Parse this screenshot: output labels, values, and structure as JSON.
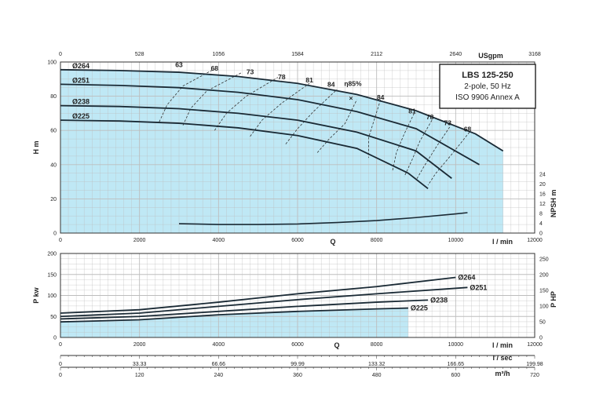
{
  "chart_data": [
    {
      "type": "line",
      "name_text": "H–Q performance",
      "title": "",
      "info_box": {
        "model": "LBS 125-250",
        "line2": "2-pole, 50 Hz",
        "line3": "ISO 9906 Annex A"
      },
      "colors": {
        "fill": "#bfe8f5",
        "curve": "#1a2a35",
        "grid": "#bdbdbd"
      },
      "x_axis": {
        "label": "Q",
        "unit": "l / min",
        "range": [
          0,
          12000
        ],
        "ticks": [
          "0",
          "2000",
          "4000",
          "6000",
          "8000",
          "10000",
          "12000"
        ]
      },
      "x_top_axis": {
        "unit": "USgpm",
        "range": [
          0,
          3168
        ],
        "ticks": [
          "0",
          "528",
          "1056",
          "1584",
          "2112",
          "2640",
          "3168"
        ]
      },
      "y_axis": {
        "label": "H m",
        "range": [
          0,
          100
        ],
        "ticks": [
          "0",
          "20",
          "40",
          "60",
          "80",
          "100"
        ]
      },
      "y_right_axis": {
        "label": "NPSH m",
        "range": [
          0,
          24
        ],
        "ticks": [
          "0",
          "4",
          "8",
          "12",
          "16",
          "20",
          "24"
        ]
      },
      "series": [
        {
          "name": "Ø264",
          "x": [
            0,
            1500,
            3000,
            4500,
            6000,
            7500,
            9000,
            10500,
            11200
          ],
          "y": [
            95.5,
            95,
            94,
            91.5,
            87.5,
            81,
            71.5,
            58,
            48
          ]
        },
        {
          "name": "Ø251",
          "x": [
            0,
            1500,
            3000,
            4500,
            6000,
            7500,
            9000,
            10600
          ],
          "y": [
            87,
            86.3,
            85,
            82.3,
            78,
            71,
            61,
            40
          ]
        },
        {
          "name": "Ø238",
          "x": [
            0,
            1500,
            3000,
            4500,
            6000,
            7500,
            9000,
            9900
          ],
          "y": [
            74.5,
            74,
            72.7,
            70,
            66,
            59,
            48,
            32
          ]
        },
        {
          "name": "Ø225",
          "x": [
            0,
            1500,
            3000,
            4500,
            6000,
            7500,
            8800,
            9300
          ],
          "y": [
            66,
            65.5,
            64.2,
            61.5,
            57,
            49.5,
            35,
            26
          ]
        }
      ],
      "npsh_curve": {
        "x": [
          3000,
          4000,
          5000,
          6000,
          7000,
          8000,
          9000,
          10000,
          10300
        ],
        "y": [
          3.8,
          3.5,
          3.5,
          3.7,
          4.3,
          5.1,
          6.3,
          7.8,
          8.3
        ]
      },
      "efficiency_labels": [
        {
          "text": "63",
          "x": 3000,
          "y": 97
        },
        {
          "text": "68",
          "x": 3900,
          "y": 95
        },
        {
          "text": "73",
          "x": 4800,
          "y": 93
        },
        {
          "text": "78",
          "x": 5600,
          "y": 90
        },
        {
          "text": "81",
          "x": 6300,
          "y": 88
        },
        {
          "text": "84",
          "x": 6850,
          "y": 85.5
        },
        {
          "text": "η85%",
          "x": 7400,
          "y": 86
        },
        {
          "text": "84",
          "x": 8100,
          "y": 78
        },
        {
          "text": "81",
          "x": 8900,
          "y": 70
        },
        {
          "text": "78",
          "x": 9350,
          "y": 66.5
        },
        {
          "text": "73",
          "x": 9800,
          "y": 63
        },
        {
          "text": "68",
          "x": 10300,
          "y": 59.5
        }
      ],
      "efficiency_arcs": [
        {
          "x": [
            2500,
            2700,
            3100,
            3900
          ],
          "y": [
            65,
            75,
            86,
            96
          ]
        },
        {
          "x": [
            3100,
            3300,
            3700,
            4600
          ],
          "y": [
            63,
            73,
            83,
            94
          ]
        },
        {
          "x": [
            3900,
            4200,
            4700,
            5500
          ],
          "y": [
            60,
            70,
            80,
            91
          ]
        },
        {
          "x": [
            4800,
            5100,
            5600,
            6300
          ],
          "y": [
            56.5,
            66,
            76,
            87.5
          ]
        },
        {
          "x": [
            5700,
            6000,
            6400,
            7000
          ],
          "y": [
            52,
            61,
            71,
            84
          ]
        },
        {
          "x": [
            6500,
            6800,
            7200,
            7500
          ],
          "y": [
            47,
            55,
            64,
            78
          ]
        },
        {
          "x": [
            8100,
            7950,
            7800,
            7800
          ],
          "y": [
            78,
            67,
            56,
            44
          ]
        },
        {
          "x": [
            8950,
            8700,
            8500,
            8400
          ],
          "y": [
            70,
            58,
            47,
            36
          ]
        },
        {
          "x": [
            9400,
            9100,
            8900,
            8700
          ],
          "y": [
            66,
            54,
            43,
            33
          ]
        },
        {
          "x": [
            9850,
            9500,
            9200,
            9000
          ],
          "y": [
            62,
            50,
            39,
            31
          ]
        },
        {
          "x": [
            10350,
            9900,
            9500,
            9300
          ],
          "y": [
            59,
            46,
            35,
            28
          ]
        }
      ],
      "fill_envelope": {
        "x_max": 11200
      }
    },
    {
      "type": "line",
      "name_text": "Power curves",
      "title": "",
      "x_axis": {
        "label": "Q",
        "unit": "l / min",
        "range": [
          0,
          12000
        ],
        "ticks": [
          "0",
          "2000",
          "4000",
          "6000",
          "8000",
          "10000",
          "12000"
        ]
      },
      "x_axis_2": {
        "unit": "l / sec",
        "range": [
          0,
          199.98
        ],
        "ticks": [
          "0",
          "33.33",
          "66.66",
          "99.99",
          "133.32",
          "166.65",
          "199.98"
        ]
      },
      "x_axis_3": {
        "unit": "m³/h",
        "range": [
          0,
          720
        ],
        "ticks": [
          "0",
          "120",
          "240",
          "360",
          "480",
          "600",
          "720"
        ]
      },
      "y_axis": {
        "label": "P kw",
        "range": [
          0,
          200
        ],
        "ticks": [
          "0",
          "50",
          "100",
          "150",
          "200"
        ]
      },
      "y_right_axis": {
        "label": "P HP",
        "range": [
          0,
          268
        ],
        "ticks": [
          "0",
          "50",
          "100",
          "150",
          "200",
          "250"
        ]
      },
      "series": [
        {
          "name": "Ø264",
          "x": [
            0,
            2000,
            4000,
            6000,
            8000,
            10000
          ],
          "y": [
            58,
            66,
            84,
            104,
            121,
            143
          ]
        },
        {
          "name": "Ø251",
          "x": [
            0,
            2000,
            4000,
            6000,
            8000,
            10300
          ],
          "y": [
            50,
            58,
            74,
            90,
            104,
            119
          ]
        },
        {
          "name": "Ø238",
          "x": [
            0,
            2000,
            4000,
            6000,
            8000,
            9300
          ],
          "y": [
            44,
            50,
            62,
            74,
            84,
            89
          ]
        },
        {
          "name": "Ø225",
          "x": [
            0,
            2000,
            4000,
            6000,
            8000,
            8800
          ],
          "y": [
            37,
            42,
            54,
            62,
            68,
            70
          ]
        }
      ],
      "fill_envelope": {
        "x_max": 8800
      }
    }
  ]
}
